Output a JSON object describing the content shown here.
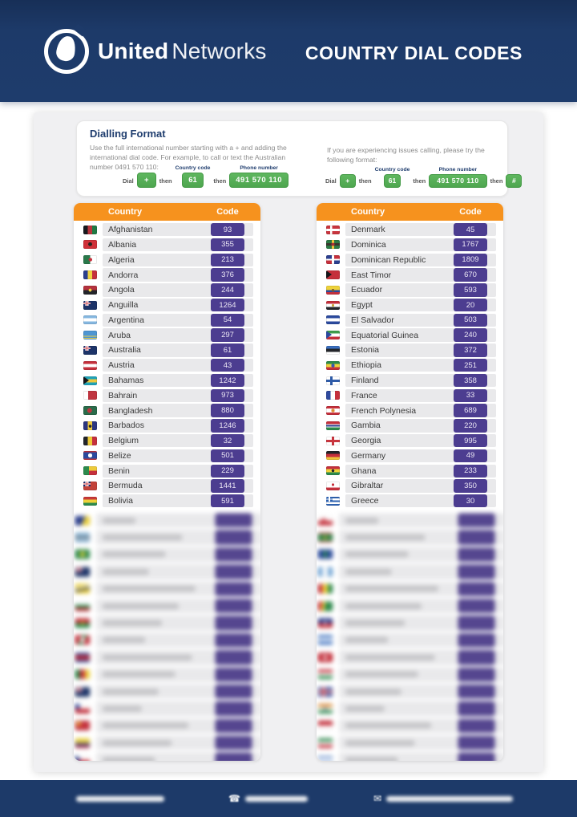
{
  "header": {
    "brand_bold": "United",
    "brand_light": "Networks",
    "title": "COUNTRY DIAL CODES"
  },
  "dialling_format": {
    "title": "Dialling Format",
    "left_text": "Use the full international number starting with a + and adding the international dial code. For example, to call or text the Australian number 0491 570 110:",
    "right_text": "If you are experiencing issues calling, please try the following format:",
    "labels": {
      "dial": "Dial",
      "then": "then",
      "country_code": "Country code",
      "phone_number": "Phone number"
    },
    "values": {
      "plus": "+",
      "code": "61",
      "number": "491 570 110",
      "hash": "#"
    }
  },
  "tables": {
    "columns": {
      "country": "Country",
      "code": "Code"
    },
    "left": {
      "rows": [
        {
          "flag": "afghanistan",
          "country": "Afghanistan",
          "code": "93"
        },
        {
          "flag": "albania",
          "country": "Albania",
          "code": "355"
        },
        {
          "flag": "algeria",
          "country": "Algeria",
          "code": "213"
        },
        {
          "flag": "andorra",
          "country": "Andorra",
          "code": "376"
        },
        {
          "flag": "angola",
          "country": "Angola",
          "code": "244"
        },
        {
          "flag": "anguilla",
          "country": "Anguilla",
          "code": "1264"
        },
        {
          "flag": "argentina",
          "country": "Argentina",
          "code": "54"
        },
        {
          "flag": "aruba",
          "country": "Aruba",
          "code": "297"
        },
        {
          "flag": "australia",
          "country": "Australia",
          "code": "61"
        },
        {
          "flag": "austria",
          "country": "Austria",
          "code": "43"
        },
        {
          "flag": "bahamas",
          "country": "Bahamas",
          "code": "1242"
        },
        {
          "flag": "bahrain",
          "country": "Bahrain",
          "code": "973"
        },
        {
          "flag": "bangladesh",
          "country": "Bangladesh",
          "code": "880"
        },
        {
          "flag": "barbados",
          "country": "Barbados",
          "code": "1246"
        },
        {
          "flag": "belgium",
          "country": "Belgium",
          "code": "32"
        },
        {
          "flag": "belize",
          "country": "Belize",
          "code": "501"
        },
        {
          "flag": "benin",
          "country": "Benin",
          "code": "229"
        },
        {
          "flag": "bermuda",
          "country": "Bermuda",
          "code": "1441"
        },
        {
          "flag": "bolivia",
          "country": "Bolivia",
          "code": "591"
        }
      ],
      "blurred_flags": [
        "bosnia",
        "botswana",
        "brazil",
        "bvi",
        "brunei",
        "bulgaria",
        "burkina",
        "burundi",
        "cambodia",
        "cameroon",
        "cayman",
        "chile",
        "china",
        "colombia",
        "czech"
      ]
    },
    "right": {
      "rows": [
        {
          "flag": "denmark",
          "country": "Denmark",
          "code": "45"
        },
        {
          "flag": "dominica",
          "country": "Dominica",
          "code": "1767"
        },
        {
          "flag": "dominican-republic",
          "country": "Dominican Republic",
          "code": "1809"
        },
        {
          "flag": "east-timor",
          "country": "East Timor",
          "code": "670"
        },
        {
          "flag": "ecuador",
          "country": "Ecuador",
          "code": "593"
        },
        {
          "flag": "egypt",
          "country": "Egypt",
          "code": "20"
        },
        {
          "flag": "el-salvador",
          "country": "El Salvador",
          "code": "503"
        },
        {
          "flag": "equatorial-guinea",
          "country": "Equatorial Guinea",
          "code": "240"
        },
        {
          "flag": "estonia",
          "country": "Estonia",
          "code": "372"
        },
        {
          "flag": "ethiopia",
          "country": "Ethiopia",
          "code": "251"
        },
        {
          "flag": "finland",
          "country": "Finland",
          "code": "358"
        },
        {
          "flag": "france",
          "country": "France",
          "code": "33"
        },
        {
          "flag": "french-polynesia",
          "country": "French Polynesia",
          "code": "689"
        },
        {
          "flag": "gambia",
          "country": "Gambia",
          "code": "220"
        },
        {
          "flag": "georgia",
          "country": "Georgia",
          "code": "995"
        },
        {
          "flag": "germany",
          "country": "Germany",
          "code": "49"
        },
        {
          "flag": "ghana",
          "country": "Ghana",
          "code": "233"
        },
        {
          "flag": "gibraltar",
          "country": "Gibraltar",
          "code": "350"
        },
        {
          "flag": "greece",
          "country": "Greece",
          "code": "30"
        }
      ],
      "blurred_flags": [
        "greenland",
        "grenada",
        "guam",
        "guatemala",
        "guinea",
        "guyana",
        "haiti",
        "honduras",
        "hong-kong",
        "hungary",
        "iceland",
        "india",
        "indonesia",
        "iran",
        "israel"
      ]
    }
  },
  "footer": {
    "items": [
      {
        "icon": "none"
      },
      {
        "icon": "phone"
      },
      {
        "icon": "email"
      }
    ]
  },
  "colors": {
    "header_navy": "#1d3a69",
    "accent_orange": "#f6921e",
    "badge_purple": "#4c3d90",
    "button_green": "#56b057",
    "sheet_gray": "#f0f0f2"
  }
}
